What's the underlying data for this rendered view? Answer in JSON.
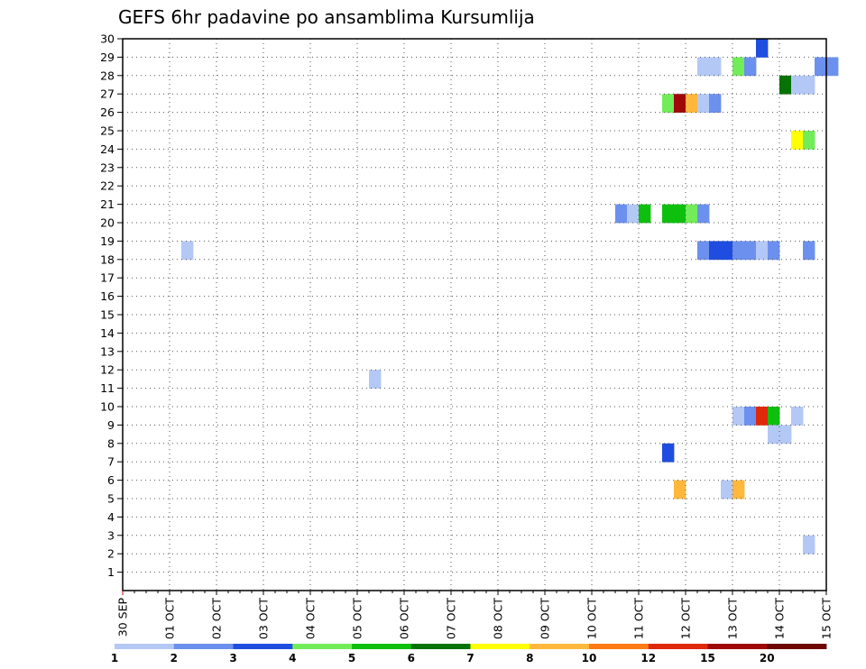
{
  "chart_data": {
    "type": "heatmap",
    "title": "GEFS 6hr padavine po ansamblima Kursumlija",
    "xlabel": "",
    "ylabel": "",
    "x_ticks": [
      "30 SEP",
      "01 OCT",
      "02 OCT",
      "03 OCT",
      "04 OCT",
      "05 OCT",
      "06 OCT",
      "07 OCT",
      "08 OCT",
      "09 OCT",
      "10 OCT",
      "11 OCT",
      "12 OCT",
      "13 OCT",
      "14 OCT",
      "15 OCT"
    ],
    "x_range": [
      "30 SEP",
      "15 OCT"
    ],
    "x_step_hours": 6,
    "y_ticks": [
      1,
      2,
      3,
      4,
      5,
      6,
      7,
      8,
      9,
      10,
      11,
      12,
      13,
      14,
      15,
      16,
      17,
      18,
      19,
      20,
      21,
      22,
      23,
      24,
      25,
      26,
      27,
      28,
      29,
      30
    ],
    "y_range": [
      0,
      30
    ],
    "grid": true,
    "colorbar": {
      "levels": [
        1,
        2,
        3,
        4,
        5,
        6,
        7,
        8,
        10,
        12,
        15,
        20
      ],
      "labels": [
        "1",
        "2",
        "3",
        "4",
        "5",
        "6",
        "7",
        "8",
        "10",
        "12",
        "15",
        "20"
      ],
      "colors": [
        "#b4c8f5",
        "#6c90ee",
        "#1e4de0",
        "#73ec5a",
        "#0ec00e",
        "#067306",
        "#ffff00",
        "#ffb73c",
        "#ff7a14",
        "#e0280a",
        "#a00808",
        "#6e0606"
      ]
    },
    "cells": [
      {
        "member": 30,
        "col": 54,
        "bin": 3
      },
      {
        "member": 29,
        "col": 49,
        "bin": 1
      },
      {
        "member": 29,
        "col": 50,
        "bin": 1
      },
      {
        "member": 29,
        "col": 52,
        "bin": 4
      },
      {
        "member": 29,
        "col": 53,
        "bin": 2
      },
      {
        "member": 29,
        "col": 59,
        "bin": 2
      },
      {
        "member": 29,
        "col": 60,
        "bin": 2
      },
      {
        "member": 28,
        "col": 56,
        "bin": 6
      },
      {
        "member": 28,
        "col": 57,
        "bin": 1
      },
      {
        "member": 28,
        "col": 58,
        "bin": 1
      },
      {
        "member": 27,
        "col": 46,
        "bin": 4
      },
      {
        "member": 27,
        "col": 47,
        "bin": 11
      },
      {
        "member": 27,
        "col": 48,
        "bin": 8
      },
      {
        "member": 27,
        "col": 49,
        "bin": 1
      },
      {
        "member": 27,
        "col": 50,
        "bin": 2
      },
      {
        "member": 25,
        "col": 57,
        "bin": 7
      },
      {
        "member": 25,
        "col": 58,
        "bin": 4
      },
      {
        "member": 21,
        "col": 42,
        "bin": 2
      },
      {
        "member": 21,
        "col": 43,
        "bin": 1
      },
      {
        "member": 21,
        "col": 44,
        "bin": 5
      },
      {
        "member": 21,
        "col": 46,
        "bin": 5
      },
      {
        "member": 21,
        "col": 47,
        "bin": 5
      },
      {
        "member": 21,
        "col": 48,
        "bin": 4
      },
      {
        "member": 21,
        "col": 49,
        "bin": 2
      },
      {
        "member": 19,
        "col": 5,
        "bin": 1
      },
      {
        "member": 19,
        "col": 49,
        "bin": 2
      },
      {
        "member": 19,
        "col": 50,
        "bin": 3
      },
      {
        "member": 19,
        "col": 51,
        "bin": 3
      },
      {
        "member": 19,
        "col": 52,
        "bin": 2
      },
      {
        "member": 19,
        "col": 53,
        "bin": 2
      },
      {
        "member": 19,
        "col": 54,
        "bin": 1
      },
      {
        "member": 19,
        "col": 55,
        "bin": 2
      },
      {
        "member": 19,
        "col": 58,
        "bin": 2
      },
      {
        "member": 12,
        "col": 21,
        "bin": 1
      },
      {
        "member": 10,
        "col": 52,
        "bin": 1
      },
      {
        "member": 10,
        "col": 53,
        "bin": 2
      },
      {
        "member": 10,
        "col": 54,
        "bin": 10
      },
      {
        "member": 10,
        "col": 55,
        "bin": 5
      },
      {
        "member": 10,
        "col": 57,
        "bin": 1
      },
      {
        "member": 9,
        "col": 55,
        "bin": 1
      },
      {
        "member": 9,
        "col": 56,
        "bin": 1
      },
      {
        "member": 8,
        "col": 46,
        "bin": 3
      },
      {
        "member": 6,
        "col": 47,
        "bin": 8
      },
      {
        "member": 6,
        "col": 51,
        "bin": 1
      },
      {
        "member": 6,
        "col": 52,
        "bin": 8
      },
      {
        "member": 3,
        "col": 58,
        "bin": 1
      }
    ]
  }
}
